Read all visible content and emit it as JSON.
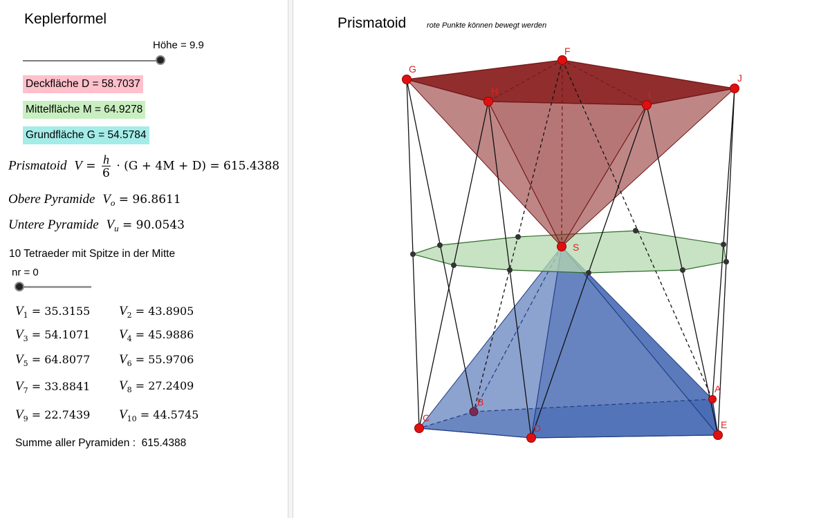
{
  "algebra": {
    "title": "Keplerformel",
    "height_slider": {
      "label": "Höhe = 9.9",
      "fraction": 1.0
    },
    "deck": {
      "label": "Deckfläche D = 58.7037",
      "color": "#ffc0cb"
    },
    "mittel": {
      "label": "Mittelfläche M = 64.9278",
      "color": "#c9efc0"
    },
    "grund": {
      "label": "Grundfläche G = 54.5784",
      "color": "#a4ece8"
    },
    "prismatoid_formula": {
      "word": "Prismatoid",
      "var": "V",
      "frac_num": "h",
      "frac_den": "6",
      "expr": "· (G + 4M + D) = 615.4388"
    },
    "upper_pyramid": {
      "word": "Obere Pyramide",
      "var": "V",
      "sub": "o",
      "value": "= 96.8611"
    },
    "lower_pyramid": {
      "word": "Untere Pyramide",
      "var": "V",
      "sub": "u",
      "value": "= 90.0543"
    },
    "tetra_caption": "10 Tetraeder  mit Spitze in der Mitte",
    "nr_slider": {
      "label": "nr = 0",
      "fraction": 0.0
    },
    "volumes": [
      {
        "sub": "1",
        "value": "= 35.3155"
      },
      {
        "sub": "2",
        "value": "= 43.8905"
      },
      {
        "sub": "3",
        "value": "= 54.1071"
      },
      {
        "sub": "4",
        "value": "= 45.9886"
      },
      {
        "sub": "5",
        "value": "= 64.8077"
      },
      {
        "sub": "6",
        "value": "= 55.9706"
      },
      {
        "sub": "7",
        "value": "= 33.8841"
      },
      {
        "sub": "8",
        "value": "= 27.2409"
      },
      {
        "sub": "9",
        "value": "= 22.7439"
      },
      {
        "sub": "10",
        "value": "= 44.5745"
      }
    ],
    "sum": {
      "label": "Summe aller Pyramiden :",
      "value": "615.4388"
    }
  },
  "graphics": {
    "title": "Prismatoid",
    "hint": "rote Punkte können bewegt werden",
    "points": {
      "F": "F",
      "G": "G",
      "H": "H",
      "I": "I",
      "J": "J",
      "S": "S",
      "A": "A",
      "B": "B",
      "C": "C",
      "D": "D",
      "E": "E"
    },
    "colors": {
      "top_pyramid": "#8b2222",
      "mid_plane": "#b5d8b0",
      "bottom_pyramid": "#2d55a8",
      "point": "#e01010"
    }
  }
}
